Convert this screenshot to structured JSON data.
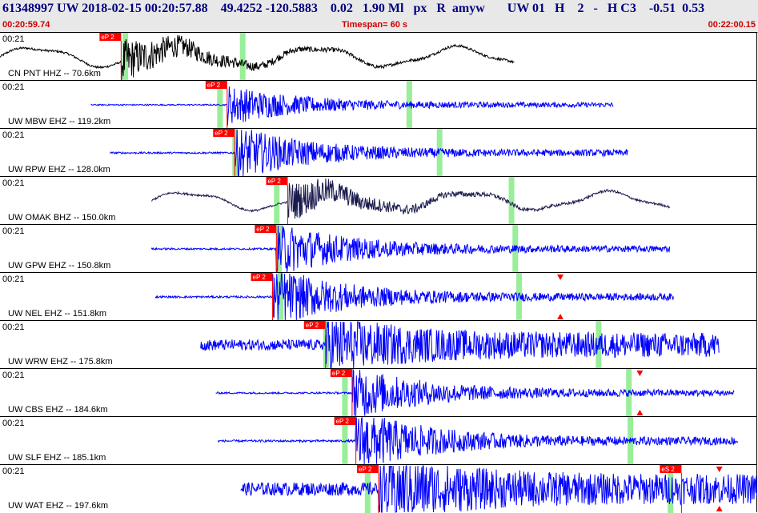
{
  "header": {
    "line": "61348997 UW 2018-02-15 00:20:57.88    49.4252 -120.5883    0.02   1.90 Ml   px   R  amyw       UW 01   H    2   -   H C3    -0.51  0.53",
    "start_time": "00:20:59.74",
    "timespan": "Timespan=  60 s",
    "end_time": "00:22:00.15"
  },
  "colors": {
    "trace_blue": "#0000ff",
    "trace_black": "#000000",
    "trace_navy": "#1a1a4d",
    "pick_red": "#ff0000",
    "highlight_green": "#99ee99"
  },
  "panels": [
    {
      "time": "00:21",
      "label": "CN PNT HHZ -- 70.6km",
      "color": "#000000",
      "start": 0.0,
      "end": 0.68,
      "onset": 0.16,
      "amp": 0.38,
      "style": "wave",
      "picks": [
        {
          "label": "eP 2",
          "pos": 0.16
        }
      ],
      "greens": [
        0.165,
        0.32
      ],
      "triangles": []
    },
    {
      "time": "00:21",
      "label": "UW MBW EHZ -- 119.2km",
      "color": "#0000ff",
      "start": 0.12,
      "end": 0.81,
      "onset": 0.3,
      "amp": 0.28,
      "style": "burst",
      "picks": [
        {
          "label": "eP 2",
          "pos": 0.3
        }
      ],
      "greens": [
        0.29,
        0.54
      ],
      "triangles": []
    },
    {
      "time": "00:21",
      "label": "UW RPW EHZ -- 128.0km",
      "color": "#0000ff",
      "start": 0.145,
      "end": 0.83,
      "onset": 0.31,
      "amp": 0.38,
      "style": "burst",
      "picks": [
        {
          "label": "eP 2",
          "pos": 0.31
        }
      ],
      "greens": [
        0.31,
        0.58
      ],
      "triangles": []
    },
    {
      "time": "00:21",
      "label": "UW OMAK BHZ -- 150.0km",
      "color": "#1a1a4d",
      "start": 0.2,
      "end": 0.885,
      "onset": 0.38,
      "amp": 0.35,
      "style": "wave",
      "picks": [
        {
          "label": "eP 2",
          "pos": 0.38
        }
      ],
      "greens": [
        0.365,
        0.675
      ],
      "triangles": []
    },
    {
      "time": "00:21",
      "label": "UW GPW EHZ -- 150.8km",
      "color": "#0000ff",
      "start": 0.2,
      "end": 0.885,
      "onset": 0.365,
      "amp": 0.38,
      "style": "burst",
      "picks": [
        {
          "label": "eP 2",
          "pos": 0.365
        }
      ],
      "greens": [
        0.368,
        0.68
      ],
      "triangles": []
    },
    {
      "time": "00:21",
      "label": "UW NEL EHZ -- 151.8km",
      "color": "#0000ff",
      "start": 0.205,
      "end": 0.89,
      "onset": 0.36,
      "amp": 0.42,
      "style": "burst",
      "picks": [
        {
          "label": "eP 2",
          "pos": 0.36
        }
      ],
      "greens": [
        0.37,
        0.685
      ],
      "triangles": [
        0.74
      ]
    },
    {
      "time": "00:21",
      "label": "UW WRW EHZ -- 175.8km",
      "color": "#0000ff",
      "start": 0.265,
      "end": 0.95,
      "onset": 0.43,
      "amp": 0.45,
      "style": "noisy",
      "picks": [
        {
          "label": "eP 2",
          "pos": 0.43
        }
      ],
      "greens": [
        0.43,
        0.79
      ],
      "triangles": []
    },
    {
      "time": "00:21",
      "label": "UW CBS EHZ -- 184.6km",
      "color": "#0000ff",
      "start": 0.285,
      "end": 0.97,
      "onset": 0.465,
      "amp": 0.38,
      "style": "burst",
      "picks": [
        {
          "label": "eP 2",
          "pos": 0.465
        }
      ],
      "greens": [
        0.455,
        0.83
      ],
      "triangles": [
        0.845
      ]
    },
    {
      "time": "00:21",
      "label": "UW SLF EHZ -- 185.1km",
      "color": "#0000ff",
      "start": 0.288,
      "end": 0.975,
      "onset": 0.47,
      "amp": 0.45,
      "style": "burst",
      "picks": [
        {
          "label": "eP 2",
          "pos": 0.47
        }
      ],
      "greens": [
        0.455,
        0.832
      ],
      "triangles": []
    },
    {
      "time": "00:21",
      "label": "UW WAT EHZ -- 197.6km",
      "color": "#0000ff",
      "start": 0.318,
      "end": 1.0,
      "onset": 0.5,
      "amp": 0.55,
      "style": "noisy",
      "picks": [
        {
          "label": "eP 2",
          "pos": 0.5
        },
        {
          "label": "eS 2",
          "pos": 0.9
        }
      ],
      "greens": [
        0.485,
        0.885
      ],
      "triangles": [
        0.95
      ]
    }
  ]
}
